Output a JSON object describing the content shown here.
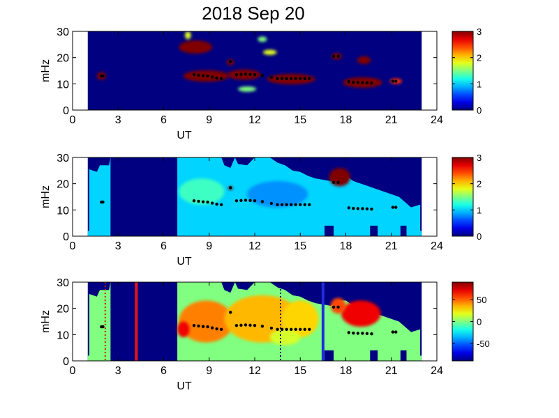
{
  "figure": {
    "title": "2018 Sep 20"
  },
  "chart_data": [
    {
      "type": "heatmap",
      "title": "2018 Sep 20",
      "xlabel": "UT",
      "ylabel": "mHz",
      "xlim": [
        0,
        24
      ],
      "ylim": [
        0,
        30
      ],
      "xticks": [
        "0",
        "3",
        "6",
        "9",
        "12",
        "15",
        "18",
        "21",
        "24"
      ],
      "yticks": [
        "0",
        "10",
        "20",
        "30"
      ],
      "colorbar": {
        "range": [
          0,
          3
        ],
        "ticks": [
          "0",
          "1",
          "2",
          "3"
        ],
        "colormap": "jet"
      },
      "background_value": 0,
      "data_extent": [
        1,
        23
      ],
      "blobs": [
        {
          "x": 1.9,
          "y": 13,
          "rx": 0.3,
          "ry": 1.5,
          "value": 3
        },
        {
          "x": 8.8,
          "y": 13,
          "rx": 1.5,
          "ry": 2.2,
          "value": 3
        },
        {
          "x": 11.3,
          "y": 13.5,
          "rx": 1.1,
          "ry": 2.0,
          "value": 3
        },
        {
          "x": 14.4,
          "y": 11.8,
          "rx": 1.6,
          "ry": 2.0,
          "value": 3
        },
        {
          "x": 19.1,
          "y": 10.5,
          "rx": 1.3,
          "ry": 2.0,
          "value": 3
        },
        {
          "x": 8.1,
          "y": 24,
          "rx": 1.1,
          "ry": 2.5,
          "value": 3
        },
        {
          "x": 10.4,
          "y": 18.2,
          "rx": 0.25,
          "ry": 1.2,
          "value": 3
        },
        {
          "x": 17.4,
          "y": 20.5,
          "rx": 0.35,
          "ry": 1.2,
          "value": 3
        },
        {
          "x": 19.2,
          "y": 19,
          "rx": 0.45,
          "ry": 1.5,
          "value": 3
        },
        {
          "x": 21.3,
          "y": 11,
          "rx": 0.4,
          "ry": 1.0,
          "value": 2.5
        },
        {
          "x": 13,
          "y": 22,
          "rx": 0.45,
          "ry": 1.0,
          "value": 1.8
        },
        {
          "x": 11.5,
          "y": 8,
          "rx": 0.6,
          "ry": 1.0,
          "value": 1.5
        },
        {
          "x": 12.5,
          "y": 27,
          "rx": 0.3,
          "ry": 1.0,
          "value": 1.5
        },
        {
          "x": 7.6,
          "y": 28.5,
          "rx": 0.2,
          "ry": 1.5,
          "value": 1.8
        }
      ],
      "ridge_points": [
        {
          "x": 1.9,
          "y": 13
        },
        {
          "x": 2.0,
          "y": 13
        },
        {
          "x": 8.0,
          "y": 13.5
        },
        {
          "x": 8.3,
          "y": 13.3
        },
        {
          "x": 8.6,
          "y": 13.1
        },
        {
          "x": 8.9,
          "y": 13
        },
        {
          "x": 9.2,
          "y": 12.6
        },
        {
          "x": 9.5,
          "y": 12.2
        },
        {
          "x": 9.8,
          "y": 12
        },
        {
          "x": 10.4,
          "y": 18.5
        },
        {
          "x": 10.8,
          "y": 13.5
        },
        {
          "x": 11.1,
          "y": 13.6
        },
        {
          "x": 11.4,
          "y": 13.7
        },
        {
          "x": 11.7,
          "y": 13.6
        },
        {
          "x": 12.0,
          "y": 13.5
        },
        {
          "x": 12.5,
          "y": 13.2
        },
        {
          "x": 13.1,
          "y": 12.5
        },
        {
          "x": 13.5,
          "y": 12
        },
        {
          "x": 13.8,
          "y": 12
        },
        {
          "x": 14.1,
          "y": 12
        },
        {
          "x": 14.4,
          "y": 12
        },
        {
          "x": 14.7,
          "y": 12
        },
        {
          "x": 15.0,
          "y": 12
        },
        {
          "x": 15.3,
          "y": 12
        },
        {
          "x": 15.6,
          "y": 12
        },
        {
          "x": 17.2,
          "y": 20.5
        },
        {
          "x": 17.5,
          "y": 20.5
        },
        {
          "x": 18.2,
          "y": 10.8
        },
        {
          "x": 18.5,
          "y": 10.6
        },
        {
          "x": 18.8,
          "y": 10.5
        },
        {
          "x": 19.1,
          "y": 10.5
        },
        {
          "x": 19.4,
          "y": 10.4
        },
        {
          "x": 19.7,
          "y": 10.3
        },
        {
          "x": 21.1,
          "y": 11
        },
        {
          "x": 21.3,
          "y": 11
        }
      ]
    },
    {
      "type": "heatmap",
      "xlabel": "UT",
      "ylabel": "mHz",
      "xlim": [
        0,
        24
      ],
      "ylim": [
        0,
        30
      ],
      "xticks": [
        "0",
        "3",
        "6",
        "9",
        "12",
        "15",
        "18",
        "21",
        "24"
      ],
      "yticks": [
        "0",
        "10",
        "20",
        "30"
      ],
      "colorbar": {
        "range": [
          0,
          3
        ],
        "ticks": [
          "0",
          "1",
          "2",
          "3"
        ],
        "colormap": "jet"
      },
      "background_value": 0,
      "fill_value": 1,
      "data_extent": [
        1,
        23
      ],
      "blank_interval": [
        2.5,
        6.9
      ],
      "top_boundary": [
        [
          1.1,
          25.5
        ],
        [
          1.6,
          24.5
        ],
        [
          1.8,
          27
        ],
        [
          2.4,
          27
        ],
        [
          2.5,
          30
        ],
        [
          6.9,
          30
        ],
        [
          7.0,
          30
        ],
        [
          9.8,
          30
        ],
        [
          10.0,
          27
        ],
        [
          10.4,
          26
        ],
        [
          10.7,
          30
        ],
        [
          10.9,
          27.5
        ],
        [
          11.5,
          27
        ],
        [
          12.0,
          30
        ],
        [
          13.0,
          30
        ],
        [
          13.5,
          28
        ],
        [
          14.0,
          27
        ],
        [
          14.5,
          25
        ],
        [
          15.0,
          24.5
        ],
        [
          15.5,
          23
        ],
        [
          16.0,
          22
        ],
        [
          16.5,
          21.5
        ],
        [
          17.0,
          21
        ],
        [
          17.5,
          23
        ],
        [
          18.0,
          23
        ],
        [
          18.5,
          21
        ],
        [
          19.5,
          19
        ],
        [
          20.5,
          17
        ],
        [
          21.5,
          15
        ],
        [
          22.3,
          11
        ],
        [
          22.9,
          12
        ],
        [
          22.9,
          7
        ]
      ],
      "bottom_notches": [
        [
          16.6,
          17.2
        ],
        [
          19.6,
          20.1
        ],
        [
          21.6,
          22.0
        ]
      ],
      "blobs": [
        {
          "x": 17.6,
          "y": 22.5,
          "rx": 0.7,
          "ry": 3.5,
          "value": 3
        },
        {
          "x": 10.4,
          "y": 18.3,
          "rx": 0.15,
          "ry": 0.7,
          "value": 3
        },
        {
          "x": 13.5,
          "y": 16,
          "rx": 2.0,
          "ry": 5.0,
          "value": 0.8
        },
        {
          "x": 8.5,
          "y": 17,
          "rx": 1.5,
          "ry": 5.0,
          "value": 1.3
        }
      ],
      "ridge_points": [
        {
          "x": 1.9,
          "y": 13
        },
        {
          "x": 2.0,
          "y": 13
        },
        {
          "x": 8.0,
          "y": 13.5
        },
        {
          "x": 8.3,
          "y": 13.3
        },
        {
          "x": 8.6,
          "y": 13.1
        },
        {
          "x": 8.9,
          "y": 13
        },
        {
          "x": 9.2,
          "y": 12.6
        },
        {
          "x": 9.5,
          "y": 12.2
        },
        {
          "x": 9.8,
          "y": 12
        },
        {
          "x": 10.4,
          "y": 18.5
        },
        {
          "x": 10.8,
          "y": 13.5
        },
        {
          "x": 11.1,
          "y": 13.6
        },
        {
          "x": 11.4,
          "y": 13.7
        },
        {
          "x": 11.7,
          "y": 13.6
        },
        {
          "x": 12.0,
          "y": 13.5
        },
        {
          "x": 12.5,
          "y": 13.2
        },
        {
          "x": 13.1,
          "y": 12.5
        },
        {
          "x": 13.5,
          "y": 12
        },
        {
          "x": 13.8,
          "y": 12
        },
        {
          "x": 14.1,
          "y": 12
        },
        {
          "x": 14.4,
          "y": 12
        },
        {
          "x": 14.7,
          "y": 12
        },
        {
          "x": 15.0,
          "y": 12
        },
        {
          "x": 15.3,
          "y": 12
        },
        {
          "x": 15.6,
          "y": 12
        },
        {
          "x": 17.2,
          "y": 20.5
        },
        {
          "x": 17.5,
          "y": 20.5
        },
        {
          "x": 18.2,
          "y": 10.8
        },
        {
          "x": 18.5,
          "y": 10.6
        },
        {
          "x": 18.8,
          "y": 10.5
        },
        {
          "x": 19.1,
          "y": 10.5
        },
        {
          "x": 19.4,
          "y": 10.4
        },
        {
          "x": 19.7,
          "y": 10.3
        },
        {
          "x": 21.1,
          "y": 11
        },
        {
          "x": 21.3,
          "y": 11
        }
      ]
    },
    {
      "type": "heatmap",
      "xlabel": "UT",
      "ylabel": "mHz",
      "xlim": [
        0,
        24
      ],
      "ylim": [
        0,
        30
      ],
      "xticks": [
        "0",
        "3",
        "6",
        "9",
        "12",
        "15",
        "18",
        "21",
        "24"
      ],
      "yticks": [
        "0",
        "10",
        "20",
        "30"
      ],
      "colorbar": {
        "range": [
          -90,
          90
        ],
        "ticks": [
          "50",
          "0",
          "-50"
        ],
        "tick_values": [
          50,
          0,
          -50
        ],
        "colormap": "jet"
      },
      "background_value": -90,
      "fill_value": 0,
      "data_extent": [
        1,
        23
      ],
      "blank_interval": [
        2.5,
        6.9
      ],
      "top_boundary": [
        [
          1.1,
          25.5
        ],
        [
          1.6,
          24.5
        ],
        [
          1.8,
          27
        ],
        [
          2.4,
          27
        ],
        [
          2.5,
          30
        ],
        [
          6.9,
          30
        ],
        [
          7.0,
          30
        ],
        [
          9.8,
          30
        ],
        [
          10.0,
          27
        ],
        [
          10.4,
          26
        ],
        [
          10.7,
          30
        ],
        [
          10.9,
          27.5
        ],
        [
          11.5,
          27
        ],
        [
          12.0,
          30
        ],
        [
          13.0,
          30
        ],
        [
          13.5,
          28
        ],
        [
          14.0,
          27
        ],
        [
          14.5,
          25
        ],
        [
          15.0,
          24.5
        ],
        [
          15.5,
          23
        ],
        [
          16.0,
          22
        ],
        [
          16.5,
          21.5
        ],
        [
          17.0,
          21
        ],
        [
          17.5,
          23
        ],
        [
          18.0,
          23
        ],
        [
          18.5,
          21
        ],
        [
          19.5,
          19
        ],
        [
          20.5,
          17
        ],
        [
          21.5,
          15
        ],
        [
          22.3,
          11
        ],
        [
          22.9,
          12
        ],
        [
          22.9,
          7
        ]
      ],
      "bottom_notches": [
        [
          16.6,
          17.2
        ],
        [
          19.6,
          20.1
        ],
        [
          21.6,
          22.0
        ]
      ],
      "blobs": [
        {
          "x": 8.8,
          "y": 15,
          "rx": 1.8,
          "ry": 8.0,
          "value": 45
        },
        {
          "x": 7.3,
          "y": 12,
          "rx": 0.4,
          "ry": 3.0,
          "value": 70
        },
        {
          "x": 12.5,
          "y": 16,
          "rx": 2.5,
          "ry": 9.0,
          "value": 35
        },
        {
          "x": 15.0,
          "y": 16,
          "rx": 1.2,
          "ry": 7.0,
          "value": 30
        },
        {
          "x": 19.0,
          "y": 18,
          "rx": 1.3,
          "ry": 5.0,
          "value": 70
        },
        {
          "x": 17.5,
          "y": 21,
          "rx": 0.5,
          "ry": 3.0,
          "value": 55
        },
        {
          "x": 14.0,
          "y": 9,
          "rx": 1.0,
          "ry": 3.0,
          "value": 15
        }
      ],
      "markers": [
        {
          "kind": "solid-line",
          "x": 4.2,
          "color": "#ee1111"
        },
        {
          "kind": "dotted-line",
          "x": 2.15,
          "color": "#cc2200"
        },
        {
          "kind": "dotted-line",
          "x": 13.7,
          "color": "#000060"
        },
        {
          "kind": "solid-line",
          "x": 16.5,
          "color": "#1d2fdc"
        }
      ],
      "ridge_points": [
        {
          "x": 1.9,
          "y": 13
        },
        {
          "x": 2.0,
          "y": 13
        },
        {
          "x": 8.0,
          "y": 13.5
        },
        {
          "x": 8.3,
          "y": 13.3
        },
        {
          "x": 8.6,
          "y": 13.1
        },
        {
          "x": 8.9,
          "y": 13
        },
        {
          "x": 9.2,
          "y": 12.6
        },
        {
          "x": 9.5,
          "y": 12.2
        },
        {
          "x": 9.8,
          "y": 12
        },
        {
          "x": 10.4,
          "y": 18.5
        },
        {
          "x": 10.8,
          "y": 13.5
        },
        {
          "x": 11.1,
          "y": 13.6
        },
        {
          "x": 11.4,
          "y": 13.7
        },
        {
          "x": 11.7,
          "y": 13.6
        },
        {
          "x": 12.0,
          "y": 13.5
        },
        {
          "x": 12.5,
          "y": 13.2
        },
        {
          "x": 13.1,
          "y": 12.5
        },
        {
          "x": 13.5,
          "y": 12
        },
        {
          "x": 13.8,
          "y": 12
        },
        {
          "x": 14.1,
          "y": 12
        },
        {
          "x": 14.4,
          "y": 12
        },
        {
          "x": 14.7,
          "y": 12
        },
        {
          "x": 15.0,
          "y": 12
        },
        {
          "x": 15.3,
          "y": 12
        },
        {
          "x": 15.6,
          "y": 12
        },
        {
          "x": 17.2,
          "y": 20.5
        },
        {
          "x": 17.5,
          "y": 20.5
        },
        {
          "x": 18.2,
          "y": 10.8
        },
        {
          "x": 18.5,
          "y": 10.6
        },
        {
          "x": 18.8,
          "y": 10.5
        },
        {
          "x": 19.1,
          "y": 10.5
        },
        {
          "x": 19.4,
          "y": 10.4
        },
        {
          "x": 19.7,
          "y": 10.3
        },
        {
          "x": 21.1,
          "y": 11
        },
        {
          "x": 21.3,
          "y": 11
        }
      ]
    }
  ]
}
